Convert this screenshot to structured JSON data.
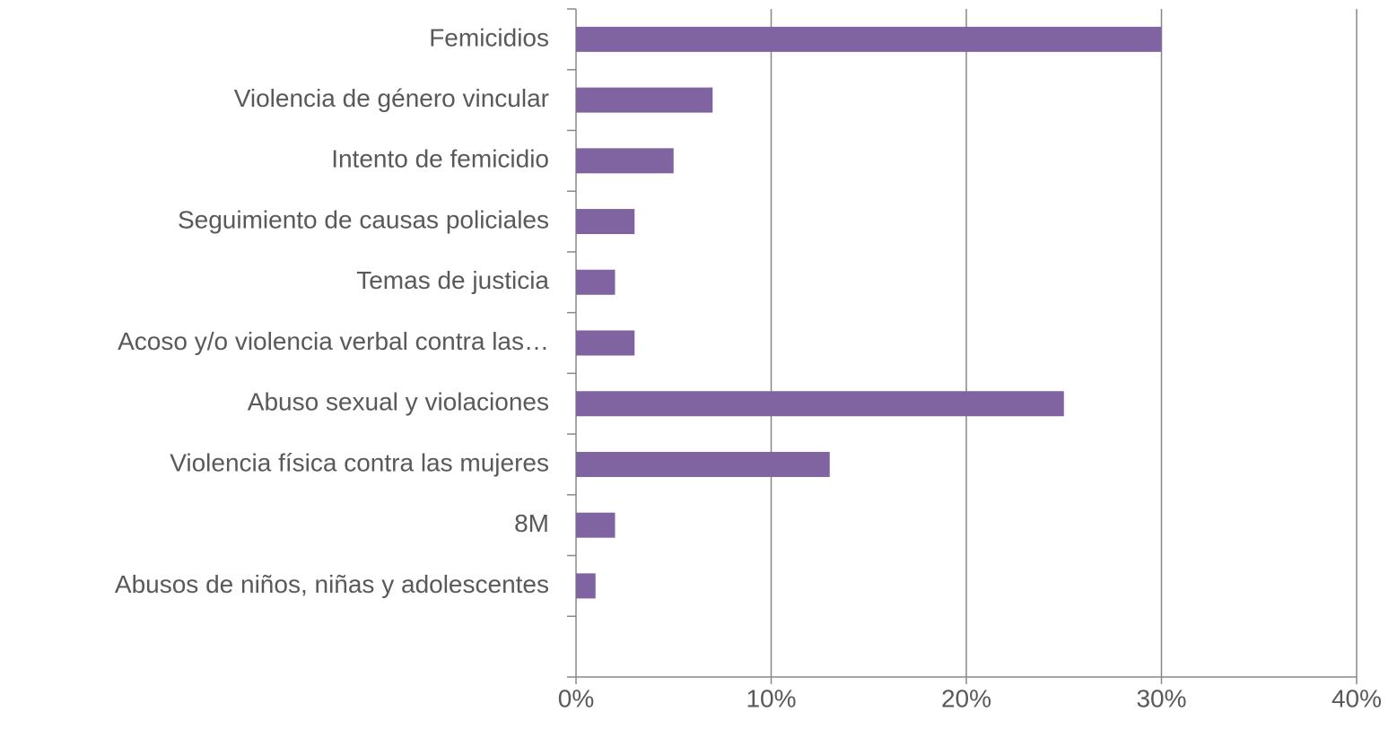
{
  "chart_data": {
    "type": "hbar",
    "categories": [
      "Femicidios",
      "Violencia de género vincular",
      "Intento de femicidio",
      "Seguimiento de causas policiales",
      "Temas de justicia",
      "Acoso y/o violencia verbal contra las…",
      "Abuso sexual y violaciones",
      "Violencia física contra las mujeres",
      "8M",
      "Abusos de niños, niñas y adolescentes",
      null
    ],
    "values": [
      30,
      7,
      5,
      3,
      2,
      3,
      25,
      13,
      2,
      1,
      null
    ],
    "color": "#8064a2",
    "xlim": [
      0,
      40
    ],
    "xticks": [
      {
        "value": 0,
        "label": "0%"
      },
      {
        "value": 10,
        "label": "10%"
      },
      {
        "value": 20,
        "label": "20%"
      },
      {
        "value": 30,
        "label": "30%"
      },
      {
        "value": 40,
        "label": "40%"
      }
    ],
    "grid": true
  }
}
